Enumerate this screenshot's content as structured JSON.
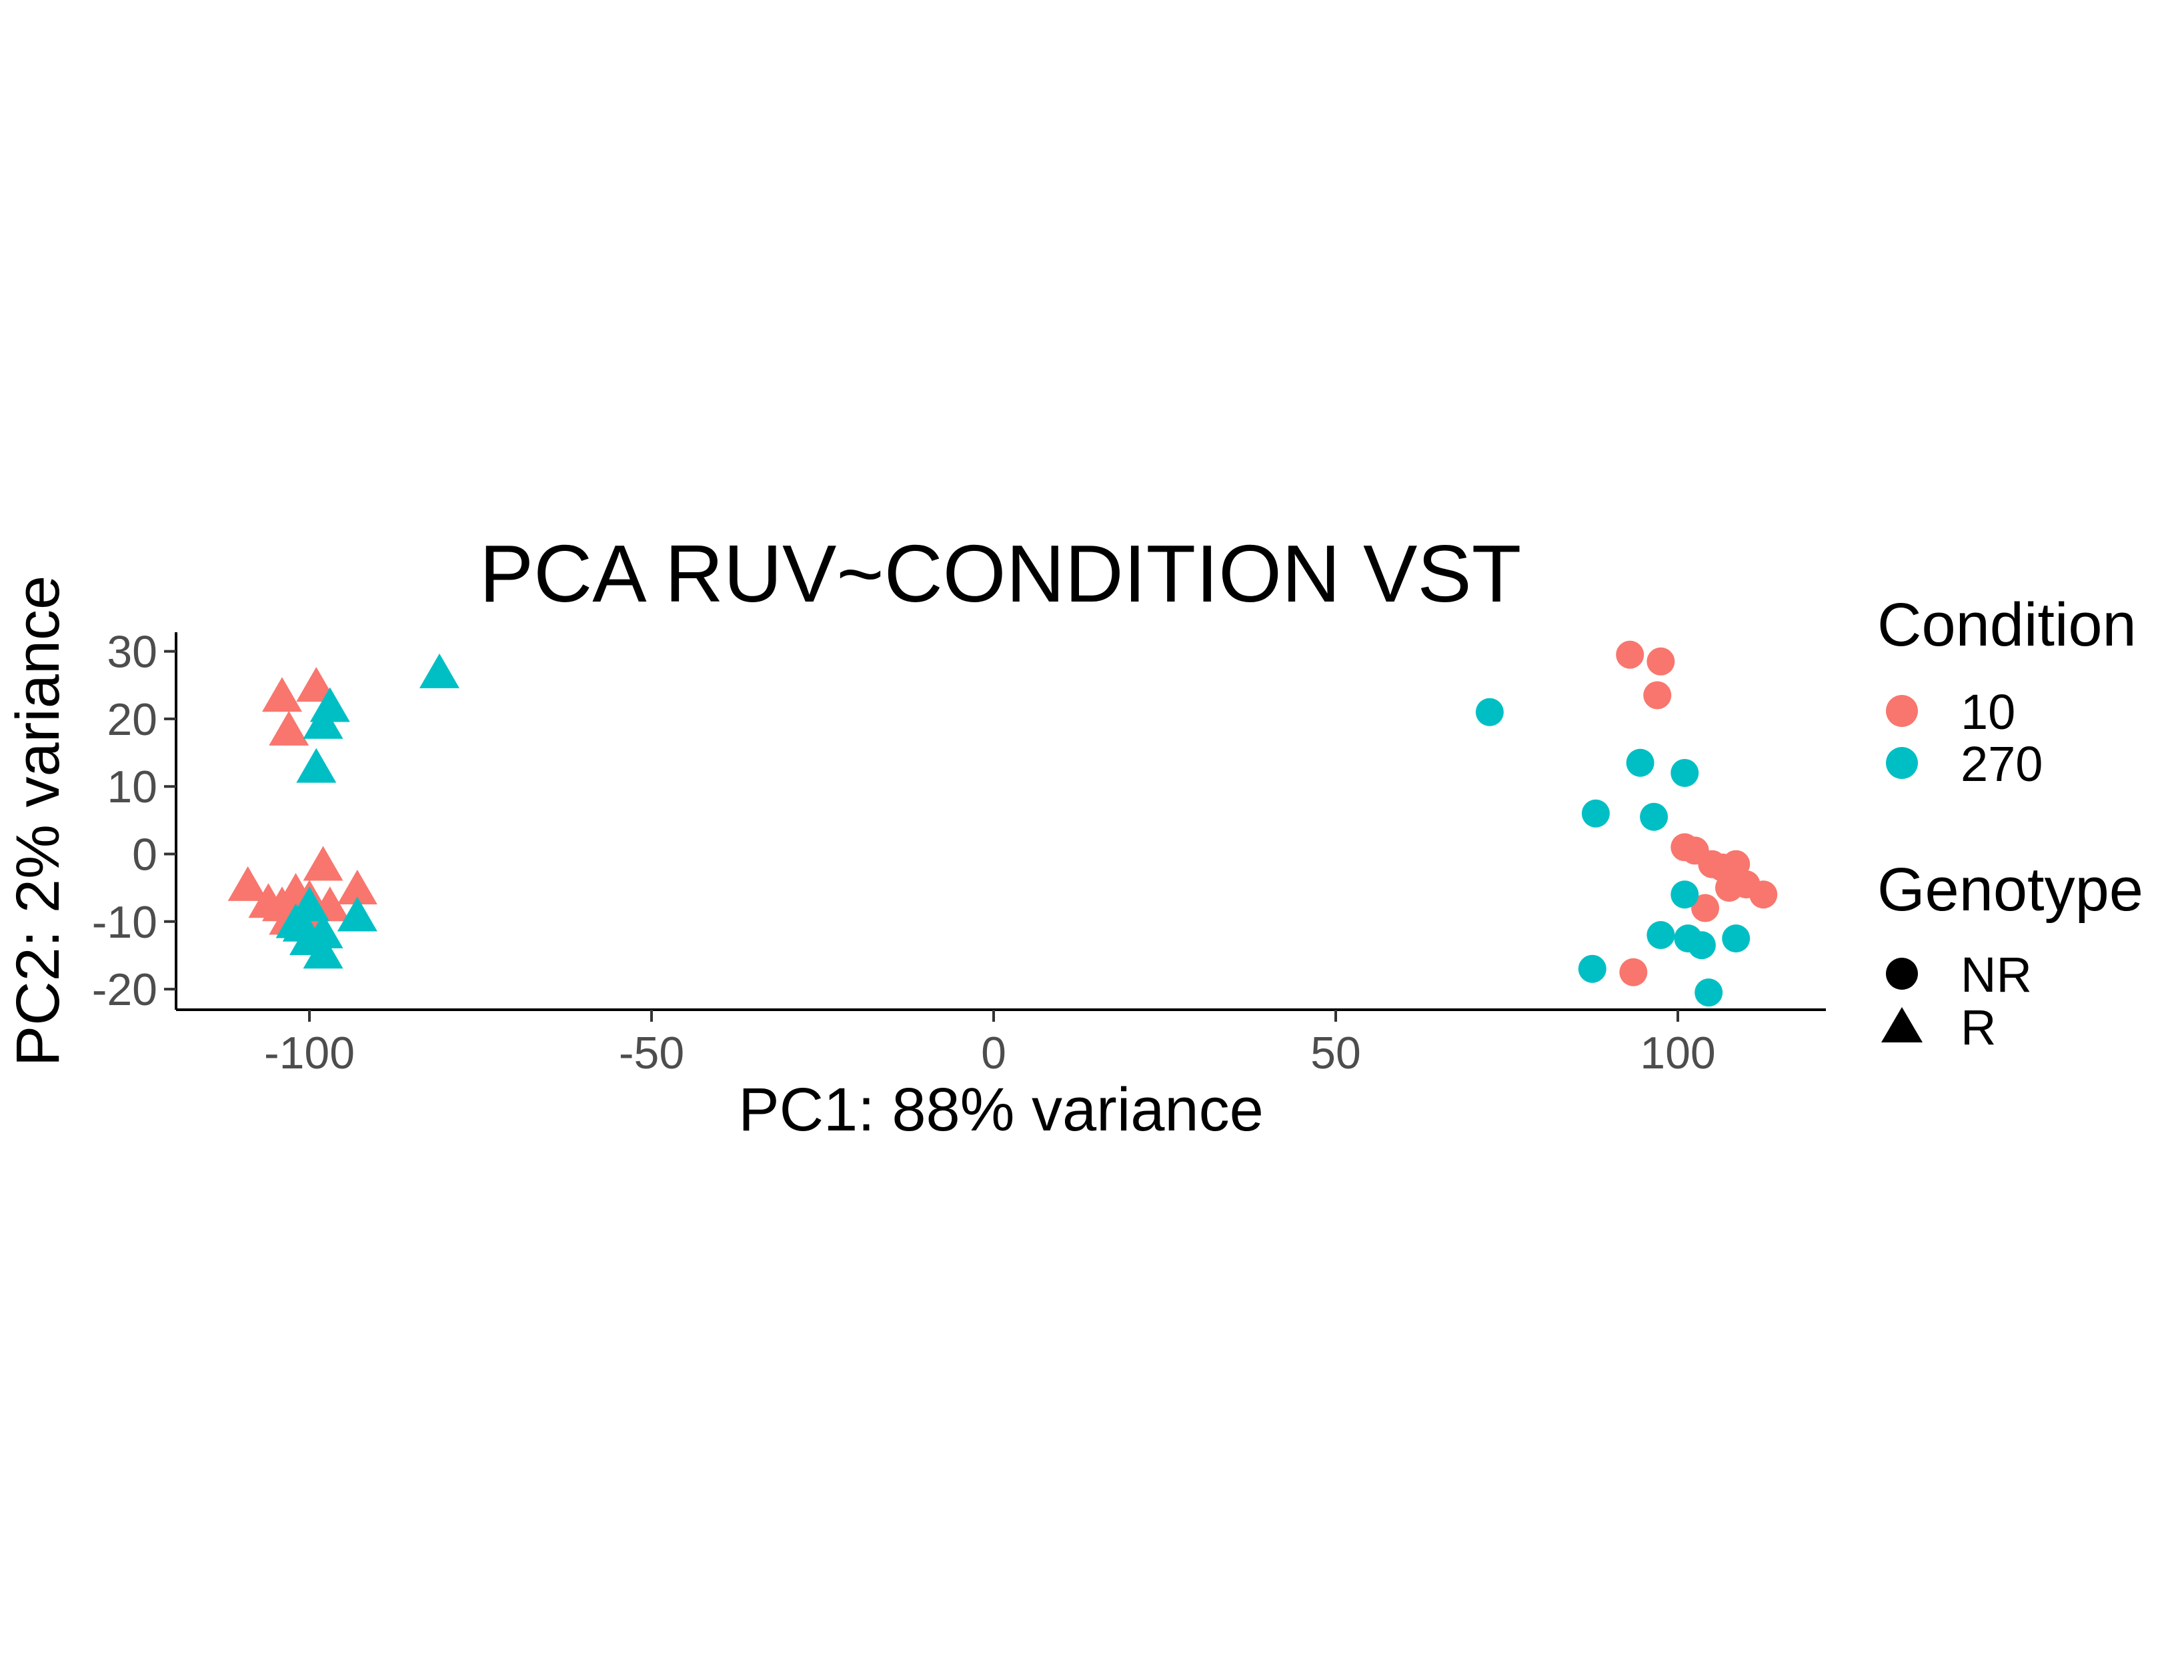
{
  "chart_data": {
    "type": "scatter",
    "title": "PCA RUV~CONDITION VST",
    "xlabel": "PC1: 88% variance",
    "ylabel": "PC2: 2% variance",
    "xlim": [
      -120,
      122
    ],
    "ylim": [
      -23,
      32
    ],
    "x_ticks": [
      -100,
      -50,
      0,
      50,
      100
    ],
    "y_ticks": [
      -20,
      -10,
      0,
      10,
      20,
      30
    ],
    "x_tick_labels": [
      "-100",
      "-50",
      "0",
      "50",
      "100"
    ],
    "y_tick_labels": [
      "-20",
      "-10",
      "0",
      "10",
      "20",
      "30"
    ],
    "grid": false,
    "legend_position": "right",
    "colors": {
      "10": "#F8766D",
      "270": "#00BFC4"
    },
    "legend": {
      "condition": {
        "title": "Condition",
        "items": [
          "10",
          "270"
        ]
      },
      "genotype": {
        "title": "Genotype",
        "items": [
          "NR",
          "R"
        ]
      }
    },
    "series": [
      {
        "condition": "10",
        "genotype": "R",
        "shape": "triangle",
        "points": [
          [
            -104,
            23
          ],
          [
            -99,
            24.5
          ],
          [
            -103,
            18
          ],
          [
            -109,
            -5
          ],
          [
            -106,
            -7.5
          ],
          [
            -104,
            -8
          ],
          [
            -102,
            -6
          ],
          [
            -100,
            -7
          ],
          [
            -97,
            -8
          ],
          [
            -98,
            -2
          ],
          [
            -93,
            -5.5
          ],
          [
            -103,
            -10
          ],
          [
            -101,
            -9
          ]
        ]
      },
      {
        "condition": "270",
        "genotype": "R",
        "shape": "triangle",
        "points": [
          [
            -81,
            26.5
          ],
          [
            -97,
            21.5
          ],
          [
            -98,
            19
          ],
          [
            -99,
            12.5
          ],
          [
            -100,
            -8
          ],
          [
            -102,
            -10.5
          ],
          [
            -98,
            -12
          ],
          [
            -100,
            -13
          ],
          [
            -93,
            -9.5
          ],
          [
            -98,
            -15
          ],
          [
            -101,
            -11
          ]
        ]
      },
      {
        "condition": "10",
        "genotype": "NR",
        "shape": "circle",
        "points": [
          [
            93,
            29.5
          ],
          [
            97.5,
            28.5
          ],
          [
            97,
            23.5
          ],
          [
            101,
            1
          ],
          [
            102.5,
            0.5
          ],
          [
            105,
            -1.5
          ],
          [
            106.5,
            -2
          ],
          [
            108.5,
            -1.5
          ],
          [
            107.5,
            -5
          ],
          [
            110,
            -4.5
          ],
          [
            112.5,
            -6
          ],
          [
            104,
            -8
          ],
          [
            93.5,
            -17.5
          ]
        ]
      },
      {
        "condition": "270",
        "genotype": "NR",
        "shape": "circle",
        "points": [
          [
            72.5,
            21
          ],
          [
            94.5,
            13.5
          ],
          [
            101,
            12
          ],
          [
            88,
            6
          ],
          [
            96.5,
            5.5
          ],
          [
            101,
            -6
          ],
          [
            97.5,
            -12
          ],
          [
            101.5,
            -12.5
          ],
          [
            103.5,
            -13.5
          ],
          [
            108.5,
            -12.5
          ],
          [
            87.5,
            -17
          ],
          [
            104.5,
            -20.5
          ]
        ]
      }
    ]
  }
}
